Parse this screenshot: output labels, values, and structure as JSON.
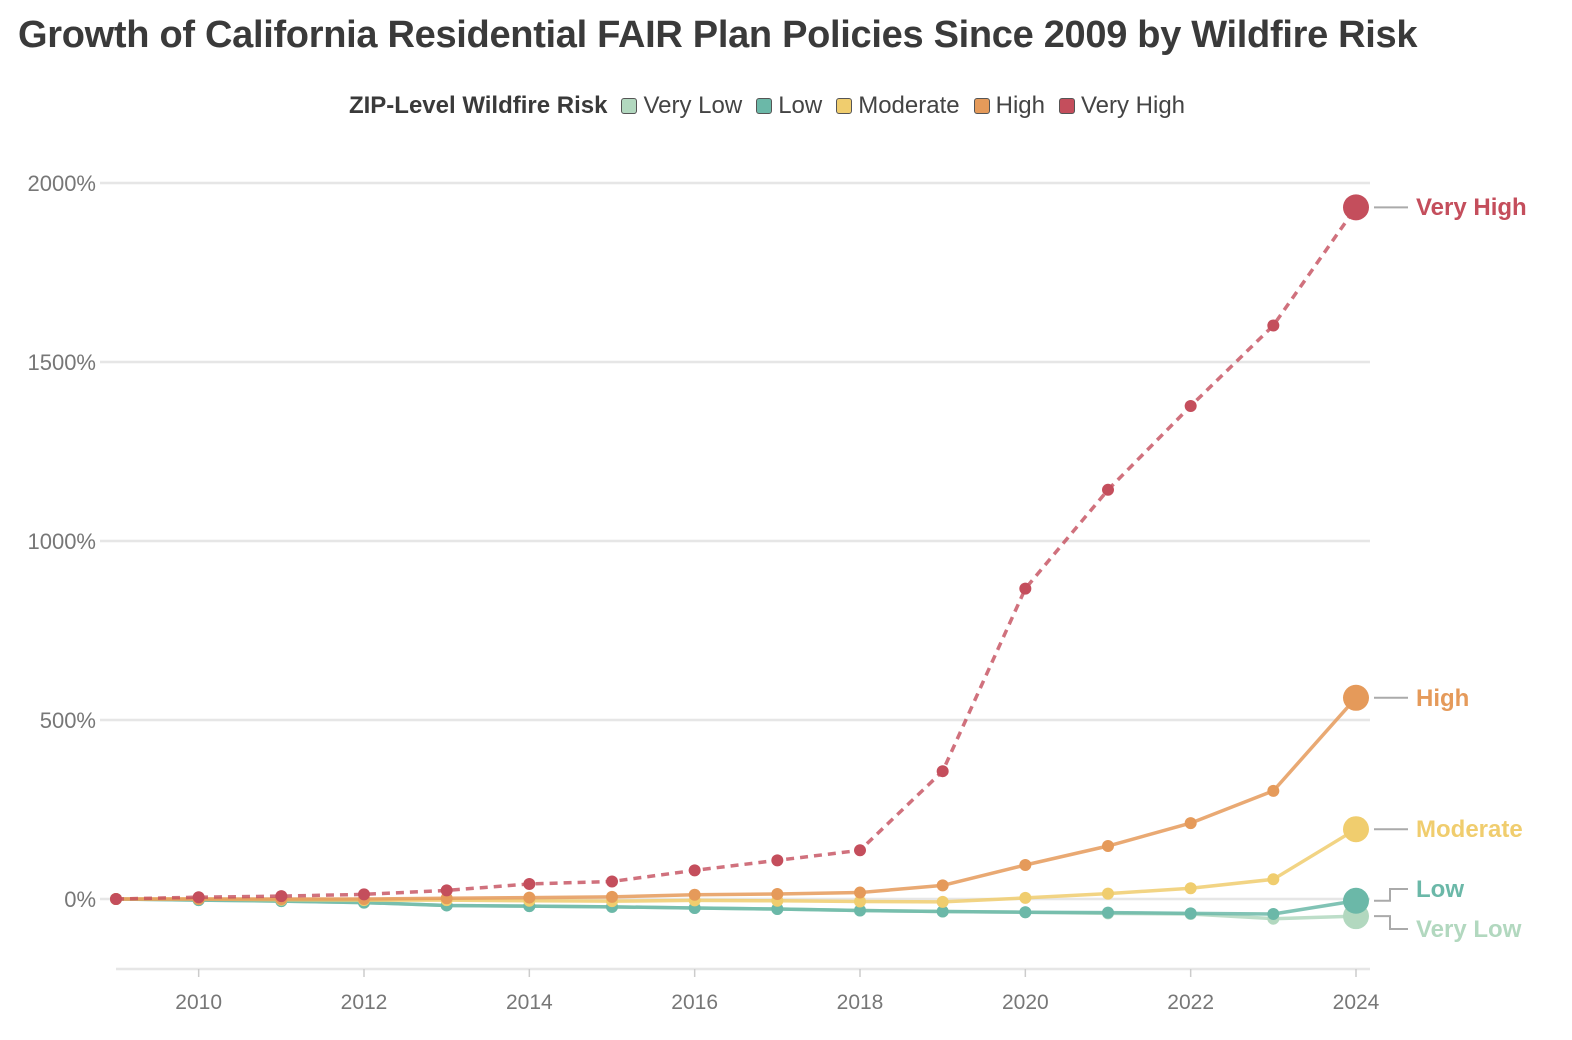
{
  "title": "Growth of California Residential FAIR Plan Policies Since 2009 by Wildfire Risk",
  "legend": {
    "title": "ZIP-Level Wildfire Risk",
    "items": [
      {
        "label": "Very Low",
        "color": "#b2d8bf"
      },
      {
        "label": "Low",
        "color": "#6bb8a8"
      },
      {
        "label": "Moderate",
        "color": "#f0cd6e"
      },
      {
        "label": "High",
        "color": "#e59a5a"
      },
      {
        "label": "Very High",
        "color": "#c44e5c"
      }
    ]
  },
  "chart_data": {
    "type": "line",
    "title": "Growth of California Residential FAIR Plan Policies Since 2009 by Wildfire Risk",
    "xlabel": "",
    "ylabel": "",
    "x": [
      2009,
      2010,
      2011,
      2012,
      2013,
      2014,
      2015,
      2016,
      2017,
      2018,
      2019,
      2020,
      2021,
      2022,
      2023,
      2024
    ],
    "xlim": [
      2009,
      2024
    ],
    "ylim": [
      -200,
      2000
    ],
    "x_ticks": [
      2010,
      2012,
      2014,
      2016,
      2018,
      2020,
      2022,
      2024
    ],
    "y_ticks": [
      0,
      500,
      1000,
      1500,
      2000
    ],
    "y_tick_labels": [
      "0%",
      "500%",
      "1000%",
      "1500%",
      "2000%"
    ],
    "grid": true,
    "legend_position": "top",
    "series": [
      {
        "name": "Very Low",
        "color": "#b2d8bf",
        "dashed": false,
        "values": [
          0,
          -3,
          -6,
          -10,
          -18,
          -20,
          -22,
          -25,
          -28,
          -32,
          -35,
          -37,
          -40,
          -42,
          -55,
          -48
        ]
      },
      {
        "name": "Low",
        "color": "#6bb8a8",
        "dashed": false,
        "values": [
          0,
          -3,
          -6,
          -10,
          -18,
          -20,
          -22,
          -25,
          -28,
          -32,
          -35,
          -37,
          -38,
          -40,
          -42,
          -5
        ]
      },
      {
        "name": "Moderate",
        "color": "#f0cd6e",
        "dashed": false,
        "values": [
          0,
          0,
          -2,
          -3,
          -3,
          -5,
          -6,
          -4,
          -5,
          -7,
          -8,
          3,
          15,
          30,
          55,
          195
        ]
      },
      {
        "name": "High",
        "color": "#e59a5a",
        "dashed": false,
        "values": [
          0,
          0,
          0,
          0,
          2,
          4,
          6,
          12,
          14,
          18,
          38,
          95,
          148,
          212,
          302,
          562
        ]
      },
      {
        "name": "Very High",
        "color": "#c44e5c",
        "dashed": true,
        "values": [
          0,
          5,
          8,
          13,
          24,
          42,
          49,
          80,
          108,
          136,
          357,
          867,
          1143,
          1377,
          1602,
          1932
        ]
      }
    ],
    "end_labels": [
      {
        "series": "Very High",
        "label": "Very High"
      },
      {
        "series": "High",
        "label": "High"
      },
      {
        "series": "Moderate",
        "label": "Moderate"
      },
      {
        "series": "Low",
        "label": "Low"
      },
      {
        "series": "Very Low",
        "label": "Very Low"
      }
    ]
  }
}
